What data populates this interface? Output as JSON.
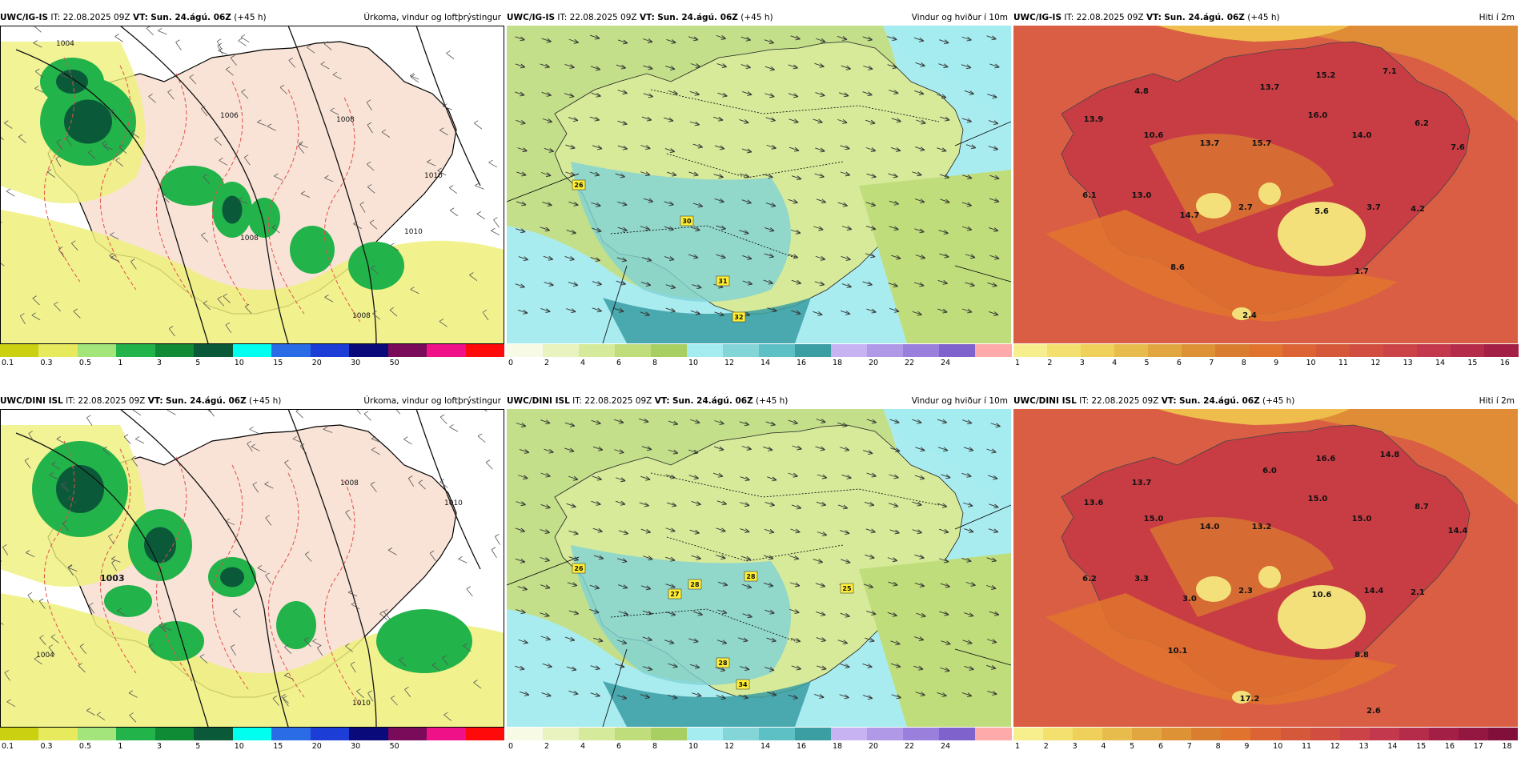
{
  "rows": [
    {
      "model": "UWC/IG-IS",
      "it": "IT: 22.08.2025 09Z",
      "vt_label": "VT:",
      "vt_value": "Sun. 24.ágú. 06Z",
      "lead": "(+45 h)",
      "panels": [
        {
          "kind": "precip",
          "title": "Úrkoma, vindur og loftþrýstingur",
          "isobars": [
            "1004",
            "1006",
            "1008",
            "1008",
            "1010",
            "1010",
            "1008"
          ],
          "temps": [],
          "maxwind": []
        },
        {
          "kind": "wind",
          "title": "Vindur og hviður í 10m",
          "maxwind": [
            "26",
            "30",
            "31",
            "32"
          ],
          "temps": []
        },
        {
          "kind": "temp",
          "title": "Hiti í 2m",
          "temps": [
            "4.8",
            "13.7",
            "15.2",
            "7.1",
            "13.9",
            "10.6",
            "13.7",
            "15.7",
            "16.0",
            "14.0",
            "6.2",
            "7.6",
            "6.1",
            "13.0",
            "14.7",
            "2.7",
            "5.6",
            "3.7",
            "4.2",
            "8.6",
            "1.7",
            "2.4"
          ],
          "maxwind": []
        }
      ]
    },
    {
      "model": "UWC/DINI ISL",
      "it": "IT: 22.08.2025 09Z",
      "vt_label": "VT:",
      "vt_value": "Sun. 24.ágú. 06Z",
      "lead": "(+45 h)",
      "panels": [
        {
          "kind": "precip",
          "title": "Úrkoma, vindur og loftþrýstingur",
          "isobars": [
            "1003",
            "1004",
            "1008",
            "1010",
            "1010"
          ],
          "temps": [],
          "maxwind": []
        },
        {
          "kind": "wind",
          "title": "Vindur og hviður í 10m",
          "maxwind": [
            "26",
            "27",
            "28",
            "28",
            "25",
            "28",
            "34"
          ],
          "temps": []
        },
        {
          "kind": "temp",
          "title": "Hiti í 2m",
          "temps": [
            "13.7",
            "6.0",
            "16.6",
            "14.8",
            "13.6",
            "15.0",
            "14.0",
            "13.2",
            "15.0",
            "15.0",
            "8.7",
            "14.4",
            "6.2",
            "3.3",
            "3.0",
            "2.3",
            "10.6",
            "14.4",
            "2.1",
            "10.1",
            "8.8",
            "17.2",
            "2.6"
          ],
          "maxwind": []
        }
      ]
    }
  ],
  "legends": {
    "precip": {
      "colors": [
        "#cbd111",
        "#e6ea5c",
        "#a3e57a",
        "#22b34a",
        "#0f8a35",
        "#0a5a3a",
        "#00ffee",
        "#2a6be6",
        "#1c3dd6",
        "#0a0a7a",
        "#7a0a5a",
        "#ee1188",
        "#ff0a0a"
      ],
      "ticks": [
        "0.1",
        "0.3",
        "0.5",
        "1",
        "3",
        "5",
        "10",
        "15",
        "20",
        "30",
        "50"
      ]
    },
    "wind": {
      "colors": [
        "#f7fbe6",
        "#e8f3c0",
        "#d5ea9a",
        "#c0dd7c",
        "#a7cf62",
        "#a4ecef",
        "#83d5d8",
        "#5cc0c4",
        "#3a9ea3",
        "#c7b3f2",
        "#b09ae8",
        "#9a7fdc",
        "#7f62cc",
        "#ffaaaa"
      ],
      "ticks": [
        "0",
        "2",
        "4",
        "6",
        "8",
        "10",
        "12",
        "14",
        "16",
        "18",
        "20",
        "22",
        "24"
      ]
    },
    "temp1": {
      "colors": [
        "#f7ef8e",
        "#f3e06e",
        "#eed05a",
        "#e8bc4c",
        "#e2a640",
        "#de9236",
        "#d97e2e",
        "#e0742e",
        "#db6334",
        "#d6583a",
        "#d14d40",
        "#cc4347",
        "#c3384c",
        "#b52c4a",
        "#a41f45"
      ],
      "ticks": [
        "1",
        "2",
        "3",
        "4",
        "5",
        "6",
        "7",
        "8",
        "9",
        "10",
        "11",
        "12",
        "13",
        "14",
        "15",
        "16"
      ]
    },
    "temp2": {
      "colors": [
        "#f7ef8e",
        "#f3e06e",
        "#eed05a",
        "#e8bc4c",
        "#e2a640",
        "#de9236",
        "#d97e2e",
        "#e0742e",
        "#db6334",
        "#d6583a",
        "#d14d40",
        "#cc4347",
        "#c3384c",
        "#b52c4a",
        "#a41f45",
        "#931740",
        "#820f3a"
      ],
      "ticks": [
        "1",
        "2",
        "3",
        "4",
        "5",
        "6",
        "7",
        "8",
        "9",
        "10",
        "11",
        "12",
        "13",
        "14",
        "15",
        "16",
        "17",
        "18"
      ]
    }
  },
  "colors": {
    "land_precip": "#f9e3d6",
    "sea_precip": "#ffffff",
    "sea_wind": "#a9ecf0",
    "sea_temp": "#d95e44",
    "isobar": "#111111",
    "isotherm": "#e0504a"
  }
}
